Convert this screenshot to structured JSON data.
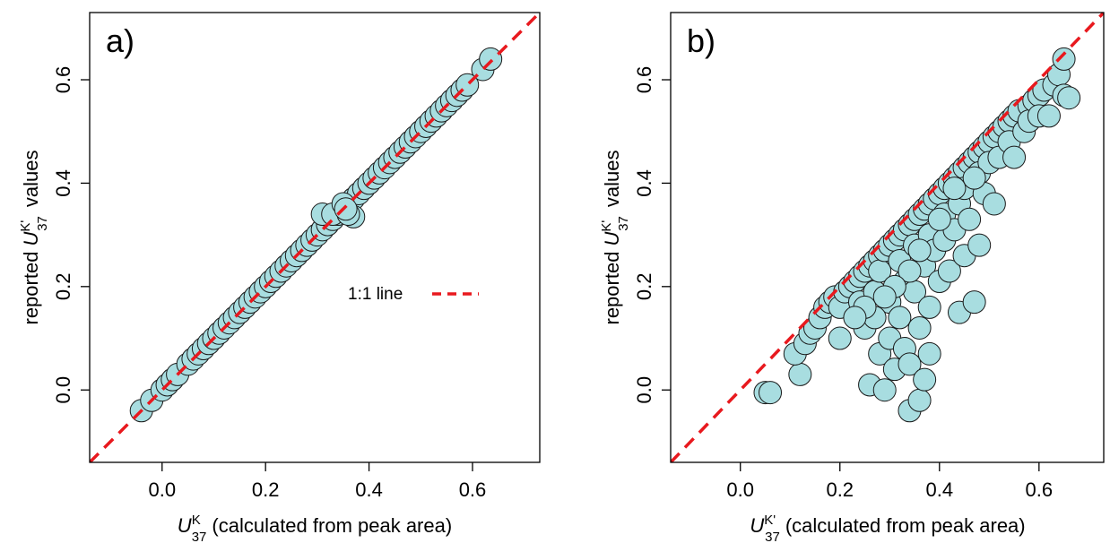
{
  "chart_data": [
    {
      "type": "scatter",
      "panel_label": "a)",
      "xlabel": {
        "symbol": "U",
        "superscript": "K",
        "subscript": "37",
        "text": "(calculated from peak area)"
      },
      "ylabel": {
        "prefix": "reported",
        "symbol": "U",
        "superscript": "K'",
        "subscript": "37",
        "text": "values"
      },
      "xlim": [
        -0.14,
        0.73
      ],
      "ylim": [
        -0.14,
        0.73
      ],
      "xticks": [
        0.0,
        0.2,
        0.4,
        0.6
      ],
      "xtick_labels": [
        "0.0",
        "0.2",
        "0.4",
        "0.6"
      ],
      "yticks": [
        0.0,
        0.2,
        0.4,
        0.6
      ],
      "ytick_labels": [
        "0.0",
        "0.2",
        "0.4",
        "0.6"
      ],
      "reference_line": {
        "label": "1:1 line",
        "slope": 1,
        "intercept": 0,
        "color": "#e8191e",
        "style": "dashed"
      },
      "legend_position": "center-right",
      "marker_color": "#a8dde0",
      "series": [
        {
          "points": [
            [
              -0.04,
              -0.04
            ],
            [
              -0.02,
              -0.02
            ],
            [
              0.0,
              0.0
            ],
            [
              0.01,
              0.01
            ],
            [
              0.02,
              0.02
            ],
            [
              0.03,
              0.03
            ],
            [
              0.05,
              0.05
            ],
            [
              0.06,
              0.06
            ],
            [
              0.07,
              0.07
            ],
            [
              0.08,
              0.08
            ],
            [
              0.09,
              0.09
            ],
            [
              0.1,
              0.1
            ],
            [
              0.11,
              0.11
            ],
            [
              0.12,
              0.12
            ],
            [
              0.13,
              0.13
            ],
            [
              0.14,
              0.14
            ],
            [
              0.15,
              0.15
            ],
            [
              0.16,
              0.16
            ],
            [
              0.17,
              0.17
            ],
            [
              0.18,
              0.18
            ],
            [
              0.19,
              0.19
            ],
            [
              0.2,
              0.2
            ],
            [
              0.21,
              0.21
            ],
            [
              0.22,
              0.22
            ],
            [
              0.23,
              0.23
            ],
            [
              0.24,
              0.24
            ],
            [
              0.25,
              0.25
            ],
            [
              0.26,
              0.26
            ],
            [
              0.27,
              0.27
            ],
            [
              0.28,
              0.28
            ],
            [
              0.29,
              0.29
            ],
            [
              0.3,
              0.3
            ],
            [
              0.31,
              0.31
            ],
            [
              0.32,
              0.32
            ],
            [
              0.33,
              0.33
            ],
            [
              0.34,
              0.34
            ],
            [
              0.35,
              0.35
            ],
            [
              0.36,
              0.36
            ],
            [
              0.37,
              0.37
            ],
            [
              0.38,
              0.38
            ],
            [
              0.39,
              0.39
            ],
            [
              0.4,
              0.4
            ],
            [
              0.41,
              0.41
            ],
            [
              0.42,
              0.42
            ],
            [
              0.43,
              0.43
            ],
            [
              0.44,
              0.44
            ],
            [
              0.45,
              0.45
            ],
            [
              0.46,
              0.46
            ],
            [
              0.47,
              0.47
            ],
            [
              0.48,
              0.48
            ],
            [
              0.49,
              0.49
            ],
            [
              0.5,
              0.5
            ],
            [
              0.51,
              0.51
            ],
            [
              0.52,
              0.52
            ],
            [
              0.53,
              0.53
            ],
            [
              0.54,
              0.54
            ],
            [
              0.55,
              0.55
            ],
            [
              0.56,
              0.56
            ],
            [
              0.57,
              0.57
            ],
            [
              0.58,
              0.58
            ],
            [
              0.59,
              0.59
            ],
            [
              0.62,
              0.62
            ],
            [
              0.635,
              0.64
            ],
            [
              0.31,
              0.34
            ],
            [
              0.33,
              0.34
            ],
            [
              0.35,
              0.36
            ],
            [
              0.37,
              0.335
            ],
            [
              0.36,
              0.34
            ],
            [
              0.355,
              0.35
            ]
          ]
        }
      ]
    },
    {
      "type": "scatter",
      "panel_label": "b)",
      "xlabel": {
        "symbol": "U",
        "superscript": "K'",
        "subscript": "37",
        "text": "(calculated from peak area)"
      },
      "ylabel": {
        "prefix": "reported",
        "symbol": "U",
        "superscript": "K'",
        "subscript": "37",
        "text": "values"
      },
      "xlim": [
        -0.14,
        0.73
      ],
      "ylim": [
        -0.14,
        0.73
      ],
      "xticks": [
        0.0,
        0.2,
        0.4,
        0.6
      ],
      "xtick_labels": [
        "0.0",
        "0.2",
        "0.4",
        "0.6"
      ],
      "yticks": [
        0.0,
        0.2,
        0.4,
        0.6
      ],
      "ytick_labels": [
        "0.0",
        "0.2",
        "0.4",
        "0.6"
      ],
      "reference_line": {
        "slope": 1,
        "intercept": 0,
        "color": "#e8191e",
        "style": "dashed"
      },
      "marker_color": "#a8dde0",
      "series": [
        {
          "points": [
            [
              0.05,
              -0.005
            ],
            [
              0.06,
              -0.005
            ],
            [
              0.12,
              0.03
            ],
            [
              0.11,
              0.07
            ],
            [
              0.13,
              0.09
            ],
            [
              0.14,
              0.11
            ],
            [
              0.15,
              0.12
            ],
            [
              0.16,
              0.14
            ],
            [
              0.17,
              0.16
            ],
            [
              0.18,
              0.17
            ],
            [
              0.19,
              0.18
            ],
            [
              0.2,
              0.16
            ],
            [
              0.2,
              0.1
            ],
            [
              0.21,
              0.19
            ],
            [
              0.22,
              0.2
            ],
            [
              0.23,
              0.21
            ],
            [
              0.24,
              0.22
            ],
            [
              0.24,
              0.17
            ],
            [
              0.25,
              0.23
            ],
            [
              0.25,
              0.12
            ],
            [
              0.26,
              0.24
            ],
            [
              0.26,
              0.01
            ],
            [
              0.27,
              0.25
            ],
            [
              0.27,
              0.19
            ],
            [
              0.28,
              0.26
            ],
            [
              0.28,
              0.23
            ],
            [
              0.28,
              0.07
            ],
            [
              0.29,
              0.27
            ],
            [
              0.29,
              0.0
            ],
            [
              0.3,
              0.28
            ],
            [
              0.3,
              0.17
            ],
            [
              0.3,
              0.1
            ],
            [
              0.31,
              0.29
            ],
            [
              0.31,
              0.04
            ],
            [
              0.32,
              0.3
            ],
            [
              0.32,
              0.25
            ],
            [
              0.32,
              0.14
            ],
            [
              0.33,
              0.31
            ],
            [
              0.33,
              0.21
            ],
            [
              0.33,
              0.08
            ],
            [
              0.34,
              0.32
            ],
            [
              0.34,
              -0.04
            ],
            [
              0.34,
              0.05
            ],
            [
              0.35,
              0.33
            ],
            [
              0.35,
              0.28
            ],
            [
              0.35,
              0.19
            ],
            [
              0.36,
              0.34
            ],
            [
              0.36,
              0.12
            ],
            [
              0.36,
              -0.02
            ],
            [
              0.37,
              0.35
            ],
            [
              0.37,
              0.24
            ],
            [
              0.37,
              0.02
            ],
            [
              0.38,
              0.36
            ],
            [
              0.38,
              0.3
            ],
            [
              0.38,
              0.16
            ],
            [
              0.38,
              0.07
            ],
            [
              0.39,
              0.37
            ],
            [
              0.39,
              0.27
            ],
            [
              0.4,
              0.38
            ],
            [
              0.4,
              0.21
            ],
            [
              0.41,
              0.39
            ],
            [
              0.41,
              0.34
            ],
            [
              0.41,
              0.29
            ],
            [
              0.42,
              0.4
            ],
            [
              0.42,
              0.23
            ],
            [
              0.43,
              0.41
            ],
            [
              0.43,
              0.31
            ],
            [
              0.44,
              0.42
            ],
            [
              0.44,
              0.36
            ],
            [
              0.44,
              0.15
            ],
            [
              0.45,
              0.43
            ],
            [
              0.45,
              0.39
            ],
            [
              0.45,
              0.26
            ],
            [
              0.46,
              0.44
            ],
            [
              0.46,
              0.33
            ],
            [
              0.47,
              0.45
            ],
            [
              0.47,
              0.17
            ],
            [
              0.48,
              0.46
            ],
            [
              0.48,
              0.42
            ],
            [
              0.48,
              0.28
            ],
            [
              0.49,
              0.47
            ],
            [
              0.49,
              0.38
            ],
            [
              0.5,
              0.48
            ],
            [
              0.5,
              0.44
            ],
            [
              0.51,
              0.49
            ],
            [
              0.51,
              0.36
            ],
            [
              0.52,
              0.5
            ],
            [
              0.52,
              0.45
            ],
            [
              0.53,
              0.51
            ],
            [
              0.54,
              0.52
            ],
            [
              0.54,
              0.48
            ],
            [
              0.55,
              0.53
            ],
            [
              0.55,
              0.45
            ],
            [
              0.56,
              0.54
            ],
            [
              0.57,
              0.5
            ],
            [
              0.58,
              0.55
            ],
            [
              0.58,
              0.52
            ],
            [
              0.59,
              0.56
            ],
            [
              0.6,
              0.57
            ],
            [
              0.6,
              0.53
            ],
            [
              0.61,
              0.58
            ],
            [
              0.62,
              0.53
            ],
            [
              0.63,
              0.59
            ],
            [
              0.64,
              0.61
            ],
            [
              0.65,
              0.64
            ],
            [
              0.65,
              0.57
            ],
            [
              0.66,
              0.565
            ],
            [
              0.47,
              0.41
            ],
            [
              0.43,
              0.39
            ],
            [
              0.4,
              0.33
            ],
            [
              0.36,
              0.27
            ],
            [
              0.34,
              0.23
            ],
            [
              0.31,
              0.2
            ],
            [
              0.29,
              0.18
            ],
            [
              0.27,
              0.14
            ],
            [
              0.25,
              0.16
            ],
            [
              0.23,
              0.14
            ]
          ]
        }
      ]
    }
  ]
}
